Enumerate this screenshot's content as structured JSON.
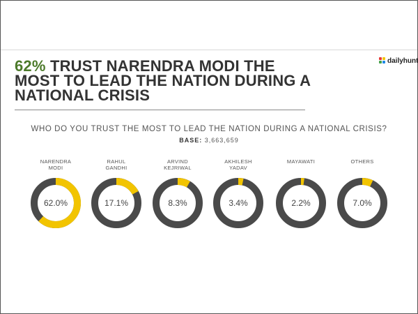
{
  "headline": {
    "pct": "62%",
    "rest": " TRUST NARENDRA MODI THE MOST TO LEAD THE NATION DURING A NATIONAL CRISIS"
  },
  "logo": {
    "text": "dailyhunt"
  },
  "question": "WHO DO YOU TRUST THE MOST TO LEAD THE NATION DURING A NATIONAL CRISIS?",
  "base": {
    "label": "BASE:",
    "value": "3,663,659"
  },
  "colors": {
    "accent": "#f2c400",
    "ring": "#4a4a4a",
    "headline_pct": "#4c7a2a"
  },
  "chart_data": {
    "type": "pie",
    "variant": "donut-series",
    "title": "WHO DO YOU TRUST THE MOST TO LEAD THE NATION DURING A NATIONAL CRISIS?",
    "categories": [
      "NARENDRA MODI",
      "RAHUL GANDHI",
      "ARVIND KEJRIWAL",
      "AKHILESH YADAV",
      "MAYAWATI",
      "OTHERS"
    ],
    "label_lines": [
      [
        "NARENDRA",
        "MODI"
      ],
      [
        "RAHUL",
        "GANDHI"
      ],
      [
        "ARVIND",
        "KEJRIWAL"
      ],
      [
        "AKHILESH",
        "YADAV"
      ],
      [
        "MAYAWATI"
      ],
      [
        "OTHERS"
      ]
    ],
    "values": [
      62.0,
      17.1,
      8.3,
      3.4,
      2.2,
      7.0
    ],
    "value_labels": [
      "62.0%",
      "17.1%",
      "8.3%",
      "3.4%",
      "2.2%",
      "7.0%"
    ],
    "unit": "%"
  }
}
